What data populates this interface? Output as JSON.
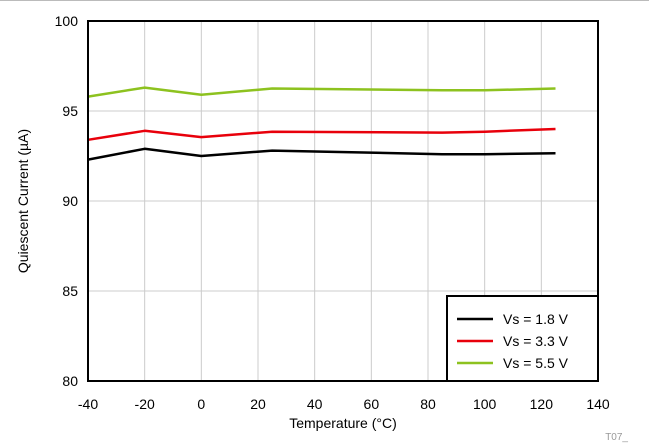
{
  "chart_data": {
    "type": "line",
    "xlabel": "Temperature (°C)",
    "ylabel": "Quiescent Current (µA)",
    "xlim": [
      -40,
      140
    ],
    "ylim": [
      80,
      100
    ],
    "xticks": [
      "-40",
      "-20",
      "0",
      "20",
      "40",
      "60",
      "80",
      "100",
      "120",
      "140"
    ],
    "yticks": [
      "80",
      "85",
      "90",
      "95",
      "100"
    ],
    "grid": true,
    "legend_position": "bottom-right",
    "series": [
      {
        "name": "Vs = 1.8 V",
        "color": "#000000",
        "x": [
          -40,
          -20,
          0,
          25,
          85,
          100,
          125
        ],
        "y": [
          92.3,
          92.9,
          92.5,
          92.8,
          92.6,
          92.6,
          92.65
        ]
      },
      {
        "name": "Vs = 3.3 V",
        "color": "#e8000b",
        "x": [
          -40,
          -20,
          0,
          25,
          85,
          100,
          125
        ],
        "y": [
          93.4,
          93.9,
          93.55,
          93.85,
          93.8,
          93.85,
          94.0
        ]
      },
      {
        "name": "Vs = 5.5 V",
        "color": "#8dc21f",
        "x": [
          -40,
          -20,
          0,
          25,
          85,
          100,
          125
        ],
        "y": [
          95.8,
          96.3,
          95.9,
          96.25,
          96.15,
          96.15,
          96.25
        ]
      }
    ],
    "figure_code": "T07_"
  }
}
